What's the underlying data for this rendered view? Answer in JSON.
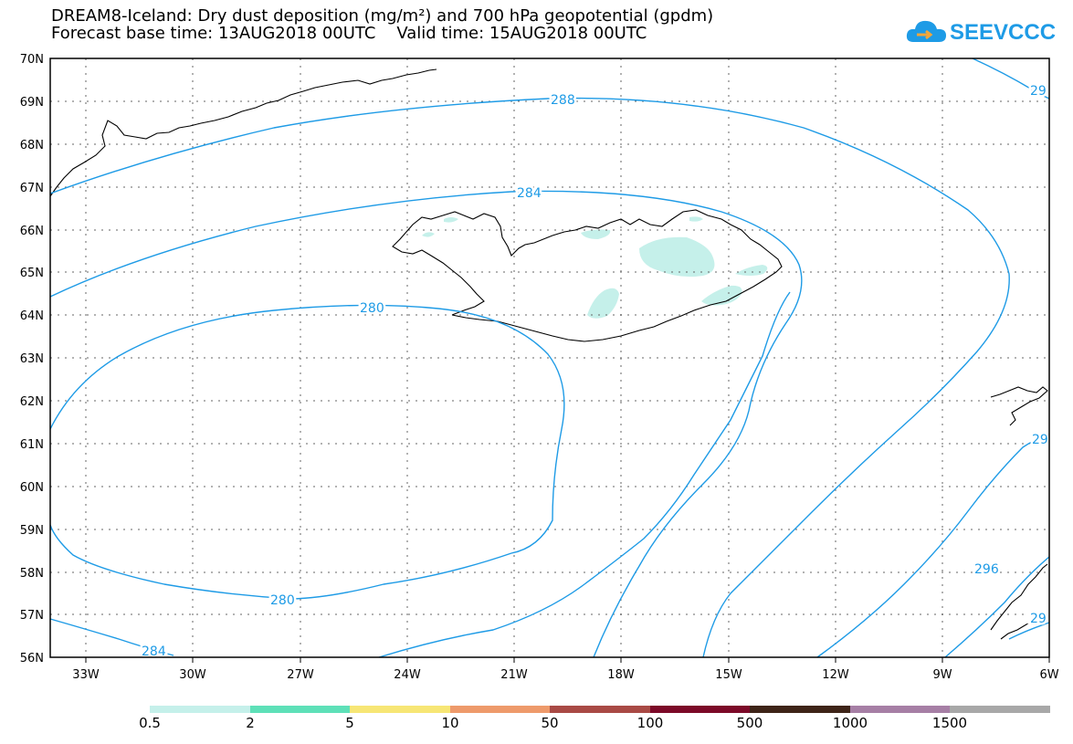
{
  "title_line1": "DREAM8-Iceland: Dry dust deposition (mg/m²) and 700 hPa geopotential (gpdm)",
  "title_line2": "Forecast base time: 13AUG2018 00UTC    Valid time: 15AUG2018 00UTC",
  "logo_text": "SEEVCCC",
  "lat_labels": [
    "70N",
    "69N",
    "68N",
    "67N",
    "66N",
    "65N",
    "64N",
    "63N",
    "62N",
    "61N",
    "60N",
    "59N",
    "58N",
    "57N",
    "56N"
  ],
  "lon_labels": [
    "33W",
    "30W",
    "27W",
    "24W",
    "21W",
    "18W",
    "15W",
    "12W",
    "9W",
    "6W"
  ],
  "contour_labels": [
    "288",
    "284",
    "280",
    "280",
    "284",
    "296",
    "29",
    "29",
    "29"
  ],
  "colorbar": {
    "colors": [
      "#c5f0ea",
      "#5ee0b8",
      "#f7e675",
      "#ee9a6b",
      "#a94a45",
      "#7c0a28",
      "#3e2418",
      "#a67fa5",
      "#a8a8a8"
    ],
    "labels": [
      "0.5",
      "2",
      "5",
      "10",
      "50",
      "100",
      "500",
      "1000",
      "1500"
    ]
  },
  "colors": {
    "contour": "#1e9be6",
    "dust": "#c5f0ea",
    "coast": "#000000"
  }
}
